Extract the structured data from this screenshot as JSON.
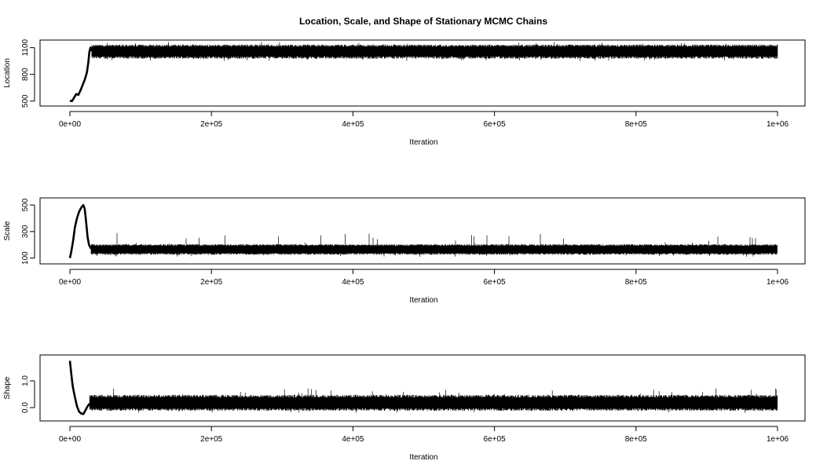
{
  "title": "Location, Scale, and Shape of Stationary MCMC Chains",
  "chart_data": [
    {
      "type": "line",
      "ylabel": "Location",
      "xlabel": "Iteration",
      "xlim": [
        0,
        1000000
      ],
      "ylim": [
        480,
        1150
      ],
      "xticks": [
        0,
        200000,
        400000,
        600000,
        800000,
        1000000
      ],
      "xtick_labels": [
        "0e+00",
        "2e+05",
        "4e+05",
        "6e+05",
        "8e+05",
        "1e+06"
      ],
      "yticks": [
        500,
        800,
        1100
      ],
      "ytick_labels": [
        "500",
        "800",
        "1100"
      ],
      "series": [
        {
          "burn_in": [
            [
              0,
              505
            ],
            [
              3000,
              500
            ],
            [
              6000,
              540
            ],
            [
              9000,
              580
            ],
            [
              12000,
              570
            ],
            [
              15000,
              620
            ],
            [
              18000,
              680
            ],
            [
              21000,
              740
            ],
            [
              24000,
              820
            ],
            [
              26000,
              930
            ],
            [
              27500,
              1050
            ],
            [
              29000,
              1100
            ],
            [
              31000,
              1060
            ]
          ],
          "stationary": {
            "from": 31000,
            "to": 1000000,
            "center": 1060,
            "low": 975,
            "high": 1135,
            "peak_max": 1165,
            "trough_min": 950
          }
        }
      ]
    },
    {
      "type": "line",
      "ylabel": "Scale",
      "xlabel": "Iteration",
      "xlim": [
        0,
        1000000
      ],
      "ylim": [
        80,
        530
      ],
      "xticks": [
        0,
        200000,
        400000,
        600000,
        800000,
        1000000
      ],
      "xtick_labels": [
        "0e+00",
        "2e+05",
        "4e+05",
        "6e+05",
        "8e+05",
        "1e+06"
      ],
      "yticks": [
        100,
        300,
        500
      ],
      "ytick_labels": [
        "100",
        "300",
        "500"
      ],
      "series": [
        {
          "burn_in": [
            [
              0,
              100
            ],
            [
              2000,
              150
            ],
            [
              4500,
              230
            ],
            [
              7000,
              330
            ],
            [
              10000,
              400
            ],
            [
              13000,
              450
            ],
            [
              16000,
              480
            ],
            [
              19000,
              500
            ],
            [
              21000,
              470
            ],
            [
              23000,
              370
            ],
            [
              25000,
              260
            ],
            [
              27000,
              200
            ],
            [
              30000,
              170
            ]
          ],
          "stationary": {
            "from": 30000,
            "to": 1000000,
            "center": 165,
            "low": 125,
            "high": 205,
            "peak_max": 290,
            "trough_min": 110
          }
        }
      ]
    },
    {
      "type": "line",
      "ylabel": "Shape",
      "xlabel": "Iteration",
      "xlim": [
        0,
        1000000
      ],
      "ylim": [
        -0.38,
        1.85
      ],
      "xticks": [
        0,
        200000,
        400000,
        600000,
        800000,
        1000000
      ],
      "xtick_labels": [
        "0e+00",
        "2e+05",
        "4e+05",
        "6e+05",
        "8e+05",
        "1e+06"
      ],
      "yticks": [
        0.0,
        1.0
      ],
      "ytick_labels": [
        "0.0",
        "1.0"
      ],
      "series": [
        {
          "burn_in": [
            [
              0,
              1.75
            ],
            [
              2000,
              1.25
            ],
            [
              4000,
              0.8
            ],
            [
              7000,
              0.4
            ],
            [
              10000,
              0.05
            ],
            [
              13000,
              -0.15
            ],
            [
              16000,
              -0.22
            ],
            [
              19000,
              -0.24
            ],
            [
              22000,
              -0.1
            ],
            [
              25000,
              0.05
            ],
            [
              28000,
              0.15
            ]
          ],
          "stationary": {
            "from": 28000,
            "to": 1000000,
            "center": 0.17,
            "low": -0.12,
            "high": 0.48,
            "peak_max": 0.72,
            "trough_min": -0.2
          }
        }
      ]
    }
  ]
}
